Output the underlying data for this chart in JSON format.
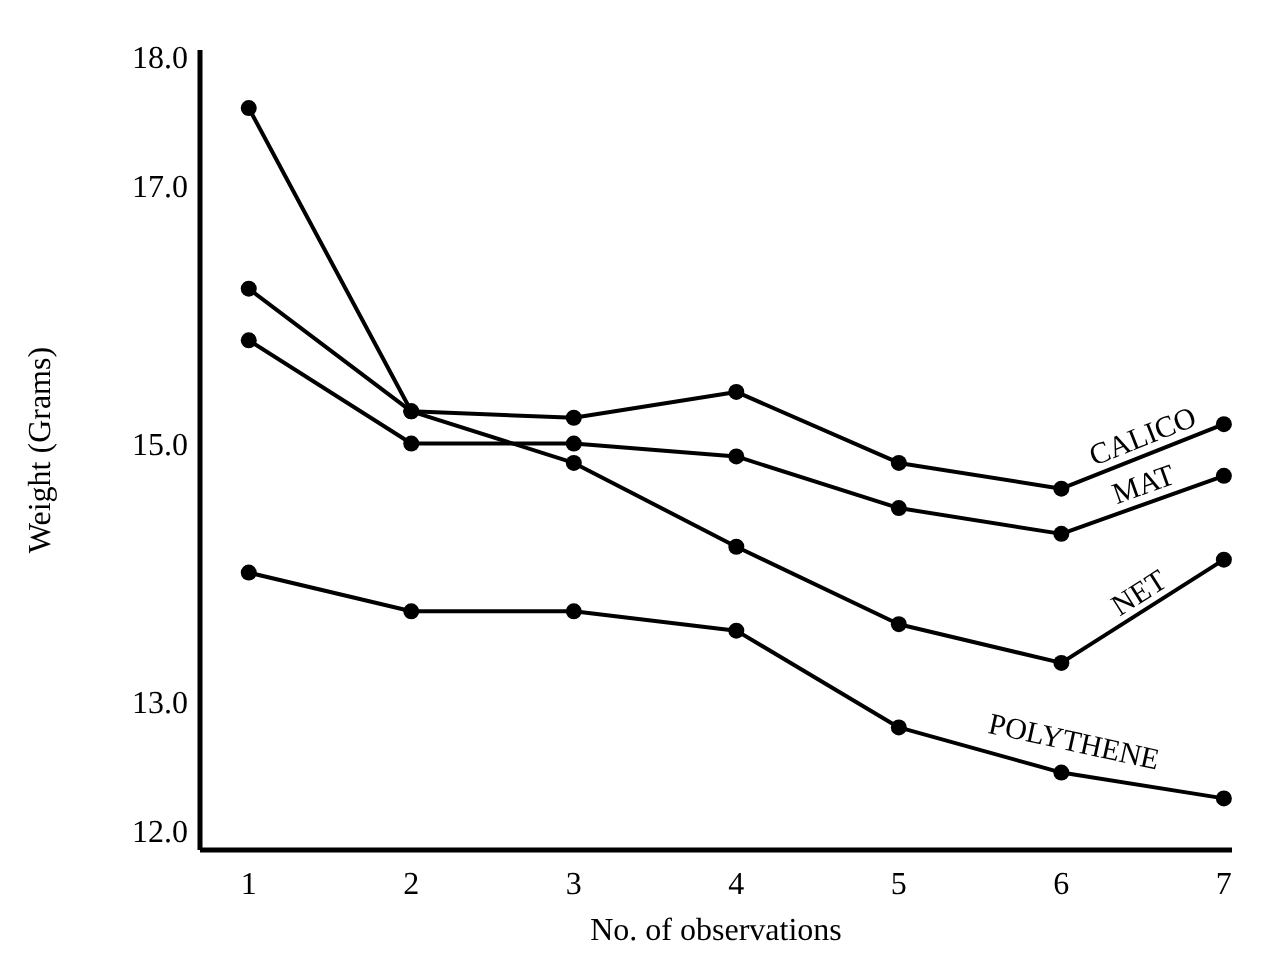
{
  "chart_data": {
    "type": "line",
    "xlabel": "No. of observations",
    "ylabel": "Weight (Grams)",
    "x": [
      1,
      2,
      3,
      4,
      5,
      6,
      7
    ],
    "xlim": [
      0.7,
      7.05
    ],
    "xticks": [
      1,
      2,
      3,
      4,
      5,
      6,
      7
    ],
    "ylim": [
      11.85,
      18.05
    ],
    "yticks": [
      {
        "value": 12,
        "label": "12.0"
      },
      {
        "value": 13,
        "label": "13.0"
      },
      {
        "value": 15,
        "label": "15.0"
      },
      {
        "value": 17,
        "label": "17.0"
      },
      {
        "value": 18,
        "label": "18.0"
      }
    ],
    "grid": false,
    "marker": "circle",
    "line_style": "solid",
    "series": [
      {
        "name": "CALICO",
        "color": "#000000",
        "values": [
          16.2,
          15.25,
          15.2,
          15.4,
          14.85,
          14.65,
          15.15
        ]
      },
      {
        "name": "MAT",
        "color": "#000000",
        "values": [
          15.8,
          15.0,
          15.0,
          14.9,
          14.5,
          14.3,
          14.75
        ]
      },
      {
        "name": "NET",
        "color": "#000000",
        "values": [
          17.6,
          15.25,
          14.85,
          14.2,
          13.6,
          13.3,
          14.1
        ]
      },
      {
        "name": "POLYTHENE",
        "color": "#000000",
        "values": [
          14.0,
          13.7,
          13.7,
          13.55,
          12.8,
          12.45,
          12.25
        ]
      }
    ]
  }
}
